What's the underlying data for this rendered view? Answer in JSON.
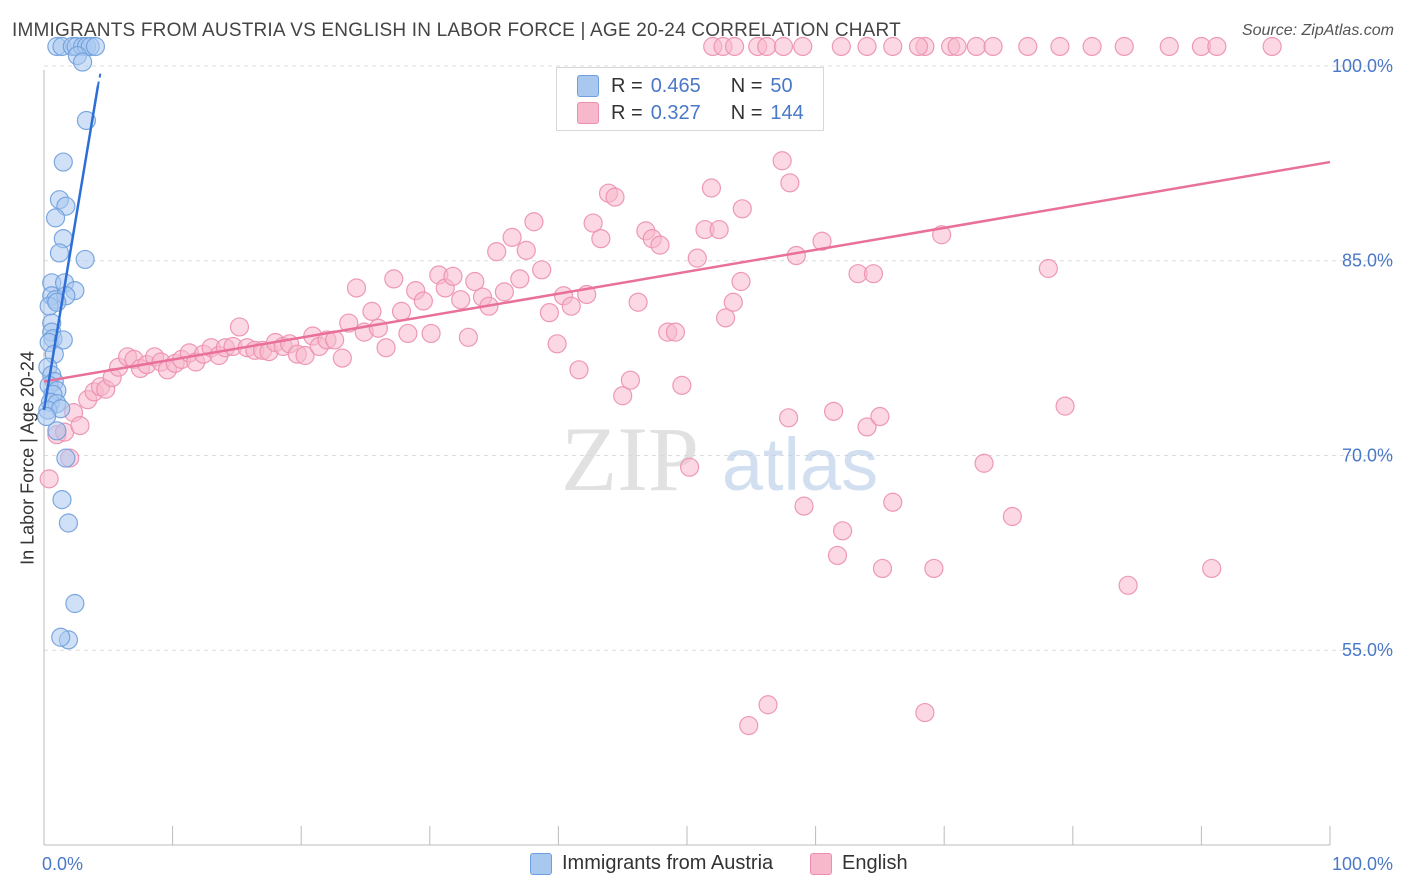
{
  "title": "IMMIGRANTS FROM AUSTRIA VS ENGLISH IN LABOR FORCE | AGE 20-24 CORRELATION CHART",
  "source": "Source: ZipAtlas.com",
  "watermark": {
    "zip": "ZIP",
    "atlas": "atlas"
  },
  "legend": {
    "rows": [
      {
        "r_label": "R =",
        "r_value": "0.465",
        "n_label": "N =",
        "n_value": "50",
        "color": "#a9c8f0",
        "border": "#6f9fdc"
      },
      {
        "r_label": "R =",
        "r_value": "0.327",
        "n_label": "N =",
        "n_value": "144",
        "color": "#f7b8cc",
        "border": "#ec8fae"
      }
    ]
  },
  "bottom_legend": [
    {
      "label": "Immigrants from Austria",
      "color": "#a9c8f0",
      "border": "#6f9fdc"
    },
    {
      "label": "English",
      "color": "#f7b8cc",
      "border": "#ec8fae"
    }
  ],
  "chart_data": {
    "type": "scatter",
    "title": "IMMIGRANTS FROM AUSTRIA VS ENGLISH IN LABOR FORCE | AGE 20-24 CORRELATION CHART",
    "xlabel": "",
    "ylabel": "In Labor Force | Age 20-24",
    "xlim": [
      0,
      100
    ],
    "ylim": [
      40,
      102
    ],
    "x_tick_labels": [
      "0.0%",
      "100.0%"
    ],
    "y_ticks": [
      100,
      85,
      70,
      55
    ],
    "y_tick_labels": [
      "100.0%",
      "85.0%",
      "70.0%",
      "55.0%"
    ],
    "grid": true,
    "series": [
      {
        "name": "Immigrants from Austria",
        "color": "#6f9fdc",
        "fill": "#a9c8f0",
        "r": 0.465,
        "n": 50,
        "trend": {
          "x": [
            0.0,
            4.2
          ],
          "y": [
            73.5,
            98.5
          ],
          "dash_to": [
            4.4,
            99.5
          ]
        },
        "points": [
          [
            1.0,
            101.5
          ],
          [
            1.4,
            101.5
          ],
          [
            2.2,
            101.5
          ],
          [
            2.5,
            101.5
          ],
          [
            3.0,
            101.5
          ],
          [
            3.3,
            101.5
          ],
          [
            3.6,
            101.5
          ],
          [
            4.0,
            101.5
          ],
          [
            2.6,
            100.8
          ],
          [
            3.0,
            100.3
          ],
          [
            3.3,
            95.8
          ],
          [
            1.5,
            92.6
          ],
          [
            1.2,
            89.7
          ],
          [
            1.7,
            89.2
          ],
          [
            0.9,
            88.3
          ],
          [
            1.5,
            86.7
          ],
          [
            1.2,
            85.6
          ],
          [
            3.2,
            85.1
          ],
          [
            0.6,
            83.3
          ],
          [
            1.6,
            83.3
          ],
          [
            2.4,
            82.7
          ],
          [
            0.6,
            82.3
          ],
          [
            0.9,
            82.0
          ],
          [
            1.7,
            82.3
          ],
          [
            0.4,
            81.5
          ],
          [
            1.0,
            81.8
          ],
          [
            0.6,
            80.2
          ],
          [
            0.6,
            79.5
          ],
          [
            0.7,
            79.0
          ],
          [
            0.4,
            78.7
          ],
          [
            0.8,
            77.8
          ],
          [
            0.3,
            76.8
          ],
          [
            0.6,
            76.2
          ],
          [
            1.5,
            78.9
          ],
          [
            0.8,
            75.7
          ],
          [
            0.4,
            75.4
          ],
          [
            1.0,
            75.0
          ],
          [
            0.7,
            74.7
          ],
          [
            0.5,
            74.1
          ],
          [
            1.0,
            74.0
          ],
          [
            0.3,
            73.5
          ],
          [
            1.3,
            73.6
          ],
          [
            0.2,
            73.0
          ],
          [
            1.0,
            71.9
          ],
          [
            1.7,
            69.8
          ],
          [
            1.4,
            66.6
          ],
          [
            1.9,
            64.8
          ],
          [
            2.4,
            58.6
          ],
          [
            1.9,
            55.8
          ],
          [
            1.3,
            56.0
          ]
        ]
      },
      {
        "name": "English",
        "color": "#ec8fae",
        "fill": "#f7b8cc",
        "r": 0.327,
        "n": 144,
        "trend": {
          "x": [
            0.0,
            100.0
          ],
          "y": [
            75.7,
            92.6
          ]
        },
        "points": [
          [
            52.0,
            101.5
          ],
          [
            52.8,
            101.5
          ],
          [
            53.7,
            101.5
          ],
          [
            55.5,
            101.5
          ],
          [
            56.2,
            101.5
          ],
          [
            57.5,
            101.5
          ],
          [
            59.0,
            101.5
          ],
          [
            62.0,
            101.5
          ],
          [
            64.0,
            101.5
          ],
          [
            66.0,
            101.5
          ],
          [
            68.5,
            101.5
          ],
          [
            70.5,
            101.5
          ],
          [
            72.5,
            101.5
          ],
          [
            73.8,
            101.5
          ],
          [
            76.5,
            101.5
          ],
          [
            79.0,
            101.5
          ],
          [
            81.5,
            101.5
          ],
          [
            84.0,
            101.5
          ],
          [
            87.5,
            101.5
          ],
          [
            90.0,
            101.5
          ],
          [
            91.2,
            101.5
          ],
          [
            95.5,
            101.5
          ],
          [
            68.0,
            101.5
          ],
          [
            71.0,
            101.5
          ],
          [
            0.4,
            68.2
          ],
          [
            1.0,
            71.6
          ],
          [
            1.6,
            71.8
          ],
          [
            2.0,
            69.8
          ],
          [
            2.3,
            73.3
          ],
          [
            2.8,
            72.3
          ],
          [
            3.4,
            74.3
          ],
          [
            3.9,
            74.9
          ],
          [
            4.4,
            75.3
          ],
          [
            4.8,
            75.1
          ],
          [
            5.3,
            76.0
          ],
          [
            5.8,
            76.8
          ],
          [
            6.5,
            77.6
          ],
          [
            7.0,
            77.4
          ],
          [
            7.5,
            76.7
          ],
          [
            8.0,
            77.0
          ],
          [
            8.6,
            77.6
          ],
          [
            9.1,
            77.2
          ],
          [
            9.6,
            76.6
          ],
          [
            10.2,
            77.1
          ],
          [
            10.7,
            77.4
          ],
          [
            11.3,
            77.9
          ],
          [
            11.8,
            77.2
          ],
          [
            12.4,
            77.8
          ],
          [
            13.0,
            78.3
          ],
          [
            13.6,
            77.7
          ],
          [
            14.1,
            78.3
          ],
          [
            14.7,
            78.4
          ],
          [
            15.2,
            79.9
          ],
          [
            15.8,
            78.3
          ],
          [
            16.4,
            78.1
          ],
          [
            17.0,
            78.1
          ],
          [
            17.5,
            78.0
          ],
          [
            18.0,
            78.7
          ],
          [
            18.6,
            78.4
          ],
          [
            19.1,
            78.6
          ],
          [
            19.7,
            77.8
          ],
          [
            20.3,
            77.7
          ],
          [
            20.9,
            79.2
          ],
          [
            21.4,
            78.4
          ],
          [
            22.0,
            78.9
          ],
          [
            22.6,
            78.9
          ],
          [
            23.2,
            77.5
          ],
          [
            23.7,
            80.2
          ],
          [
            24.3,
            82.9
          ],
          [
            24.9,
            79.5
          ],
          [
            25.5,
            81.1
          ],
          [
            26.0,
            79.8
          ],
          [
            26.6,
            78.3
          ],
          [
            27.2,
            83.6
          ],
          [
            27.8,
            81.1
          ],
          [
            28.3,
            79.4
          ],
          [
            28.9,
            82.7
          ],
          [
            29.5,
            81.9
          ],
          [
            30.1,
            79.4
          ],
          [
            30.7,
            83.9
          ],
          [
            31.2,
            82.9
          ],
          [
            31.8,
            83.8
          ],
          [
            32.4,
            82.0
          ],
          [
            33.0,
            79.1
          ],
          [
            33.5,
            83.4
          ],
          [
            34.1,
            82.2
          ],
          [
            34.6,
            81.5
          ],
          [
            35.2,
            85.7
          ],
          [
            35.8,
            82.6
          ],
          [
            36.4,
            86.8
          ],
          [
            37.0,
            83.6
          ],
          [
            37.5,
            85.8
          ],
          [
            38.1,
            88.0
          ],
          [
            38.7,
            84.3
          ],
          [
            39.3,
            81.0
          ],
          [
            39.9,
            78.6
          ],
          [
            40.4,
            82.3
          ],
          [
            41.0,
            81.5
          ],
          [
            41.6,
            76.6
          ],
          [
            42.2,
            82.4
          ],
          [
            42.7,
            87.9
          ],
          [
            43.3,
            86.7
          ],
          [
            43.9,
            90.2
          ],
          [
            44.4,
            89.9
          ],
          [
            45.0,
            74.6
          ],
          [
            45.6,
            75.8
          ],
          [
            46.2,
            81.8
          ],
          [
            46.8,
            87.3
          ],
          [
            47.3,
            86.7
          ],
          [
            47.9,
            86.2
          ],
          [
            48.5,
            79.5
          ],
          [
            49.1,
            79.5
          ],
          [
            49.6,
            75.4
          ],
          [
            50.2,
            69.1
          ],
          [
            50.8,
            85.2
          ],
          [
            51.4,
            87.4
          ],
          [
            51.9,
            90.6
          ],
          [
            52.5,
            87.4
          ],
          [
            53.0,
            80.6
          ],
          [
            53.6,
            81.8
          ],
          [
            54.2,
            83.4
          ],
          [
            54.8,
            49.2
          ],
          [
            54.3,
            89.0
          ],
          [
            56.3,
            50.8
          ],
          [
            57.4,
            92.7
          ],
          [
            57.9,
            72.9
          ],
          [
            58.5,
            85.4
          ],
          [
            59.1,
            66.1
          ],
          [
            58.0,
            91.0
          ],
          [
            60.5,
            86.5
          ],
          [
            61.4,
            73.4
          ],
          [
            61.7,
            62.3
          ],
          [
            62.1,
            64.2
          ],
          [
            63.3,
            84.0
          ],
          [
            64.0,
            72.2
          ],
          [
            64.5,
            84.0
          ],
          [
            65.0,
            73.0
          ],
          [
            66.0,
            66.4
          ],
          [
            65.2,
            61.3
          ],
          [
            68.5,
            50.2
          ],
          [
            69.2,
            61.3
          ],
          [
            69.8,
            87.0
          ],
          [
            73.1,
            69.4
          ],
          [
            75.3,
            65.3
          ],
          [
            78.1,
            84.4
          ],
          [
            79.4,
            73.8
          ],
          [
            90.8,
            61.3
          ],
          [
            84.3,
            60.0
          ]
        ]
      }
    ]
  }
}
